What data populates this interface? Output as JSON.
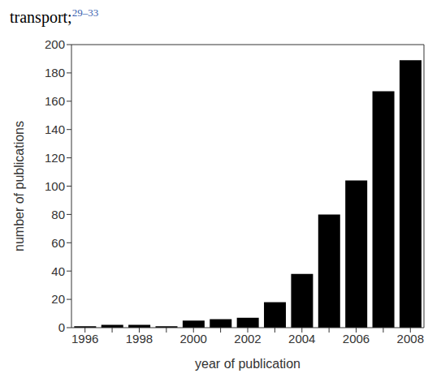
{
  "chart_data": {
    "type": "bar",
    "annotations": [
      {
        "text": "transport;",
        "superscript": "29–33"
      }
    ],
    "x_label": "year of publication",
    "y_label": "number of publications",
    "categories": [
      "1996",
      null,
      "1998",
      null,
      "2000",
      null,
      "2002",
      null,
      "2004",
      null,
      "2006",
      null,
      "2008"
    ],
    "values": [
      1,
      2,
      2,
      1,
      5,
      6,
      7,
      18,
      38,
      80,
      104,
      167,
      189
    ],
    "color": "#000000",
    "ylim": [
      0,
      200
    ],
    "yticks": [
      0,
      20,
      40,
      60,
      80,
      100,
      120,
      140,
      160,
      180,
      200
    ],
    "grid": false
  }
}
